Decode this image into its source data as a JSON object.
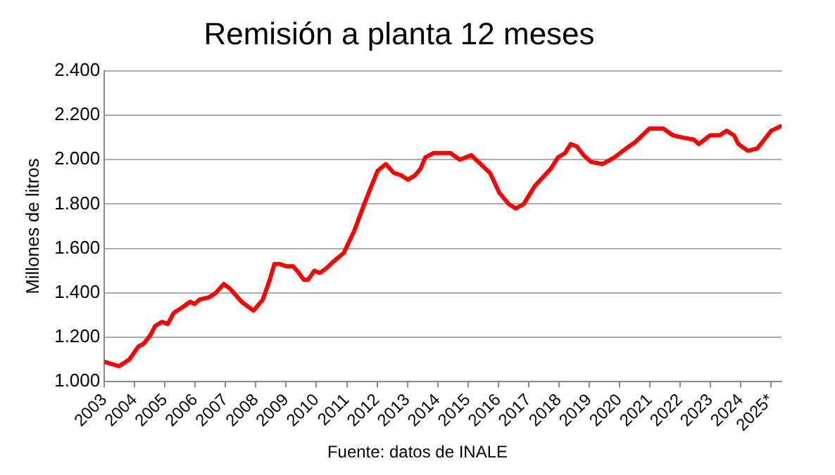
{
  "chart_data": {
    "type": "line",
    "title": "Remisión a planta 12 meses",
    "ylabel": "Millones de litros",
    "annotations": [
      "Fuente: datos de INALE"
    ],
    "x": [
      2003.0,
      2003.48,
      2003.82,
      2004.13,
      2004.29,
      2004.52,
      2004.67,
      2004.9,
      2005.09,
      2005.29,
      2005.52,
      2005.83,
      2005.98,
      2006.14,
      2006.45,
      2006.68,
      2006.94,
      2007.14,
      2007.53,
      2007.92,
      2008.23,
      2008.46,
      2008.61,
      2008.8,
      2009.0,
      2009.23,
      2009.42,
      2009.58,
      2009.73,
      2009.93,
      2010.11,
      2010.32,
      2010.55,
      2010.9,
      2011.25,
      2011.55,
      2011.78,
      2012.02,
      2012.29,
      2012.56,
      2012.79,
      2013.02,
      2013.26,
      2013.44,
      2013.59,
      2013.87,
      2014.18,
      2014.42,
      2014.73,
      2015.11,
      2015.42,
      2015.73,
      2016.04,
      2016.35,
      2016.58,
      2016.84,
      2017.2,
      2017.74,
      2017.97,
      2018.21,
      2018.39,
      2018.59,
      2018.82,
      2019.06,
      2019.44,
      2019.83,
      2020.22,
      2020.53,
      2020.99,
      2021.3,
      2021.45,
      2021.76,
      2022.07,
      2022.46,
      2022.62,
      2023.0,
      2023.31,
      2023.54,
      2023.78,
      2023.93,
      2024.24,
      2024.55,
      2024.78,
      2025.01,
      2025.32
    ],
    "series": [
      {
        "color": "#ff0000",
        "values": [
          1090,
          1070,
          1100,
          1160,
          1170,
          1210,
          1250,
          1270,
          1260,
          1310,
          1330,
          1360,
          1350,
          1370,
          1380,
          1400,
          1440,
          1420,
          1360,
          1320,
          1370,
          1460,
          1530,
          1530,
          1520,
          1520,
          1490,
          1460,
          1460,
          1500,
          1490,
          1510,
          1540,
          1580,
          1680,
          1790,
          1870,
          1950,
          1980,
          1940,
          1930,
          1910,
          1930,
          1960,
          2010,
          2030,
          2030,
          2030,
          2000,
          2020,
          1980,
          1940,
          1850,
          1800,
          1780,
          1800,
          1880,
          1960,
          2010,
          2030,
          2070,
          2060,
          2020,
          1990,
          1980,
          2010,
          2050,
          2080,
          2140,
          2140,
          2140,
          2110,
          2100,
          2090,
          2070,
          2110,
          2110,
          2130,
          2110,
          2070,
          2040,
          2050,
          2090,
          2130,
          2150
        ]
      }
    ],
    "xlim": [
      2003,
      2025.35
    ],
    "xticks": [
      2003,
      2004,
      2005,
      2006,
      2007,
      2008,
      2009,
      2010,
      2011,
      2012,
      2013,
      2014,
      2015,
      2016,
      2017,
      2018,
      2019,
      2020,
      2021,
      2022,
      2023,
      2024,
      {
        "value": 2025,
        "label": "2025*"
      }
    ],
    "ylim": [
      1000,
      2400
    ],
    "yticks": [
      {
        "value": 1000,
        "label": "1.000"
      },
      {
        "value": 1200,
        "label": "1.200"
      },
      {
        "value": 1400,
        "label": "1.400"
      },
      {
        "value": 1600,
        "label": "1.600"
      },
      {
        "value": 1800,
        "label": "1.800"
      },
      {
        "value": 2000,
        "label": "2.000"
      },
      {
        "value": 2200,
        "label": "2.200"
      },
      {
        "value": 2400,
        "label": "2.400"
      }
    ],
    "grid": "y",
    "legend": false,
    "marker": "none",
    "line_style": "solid"
  }
}
